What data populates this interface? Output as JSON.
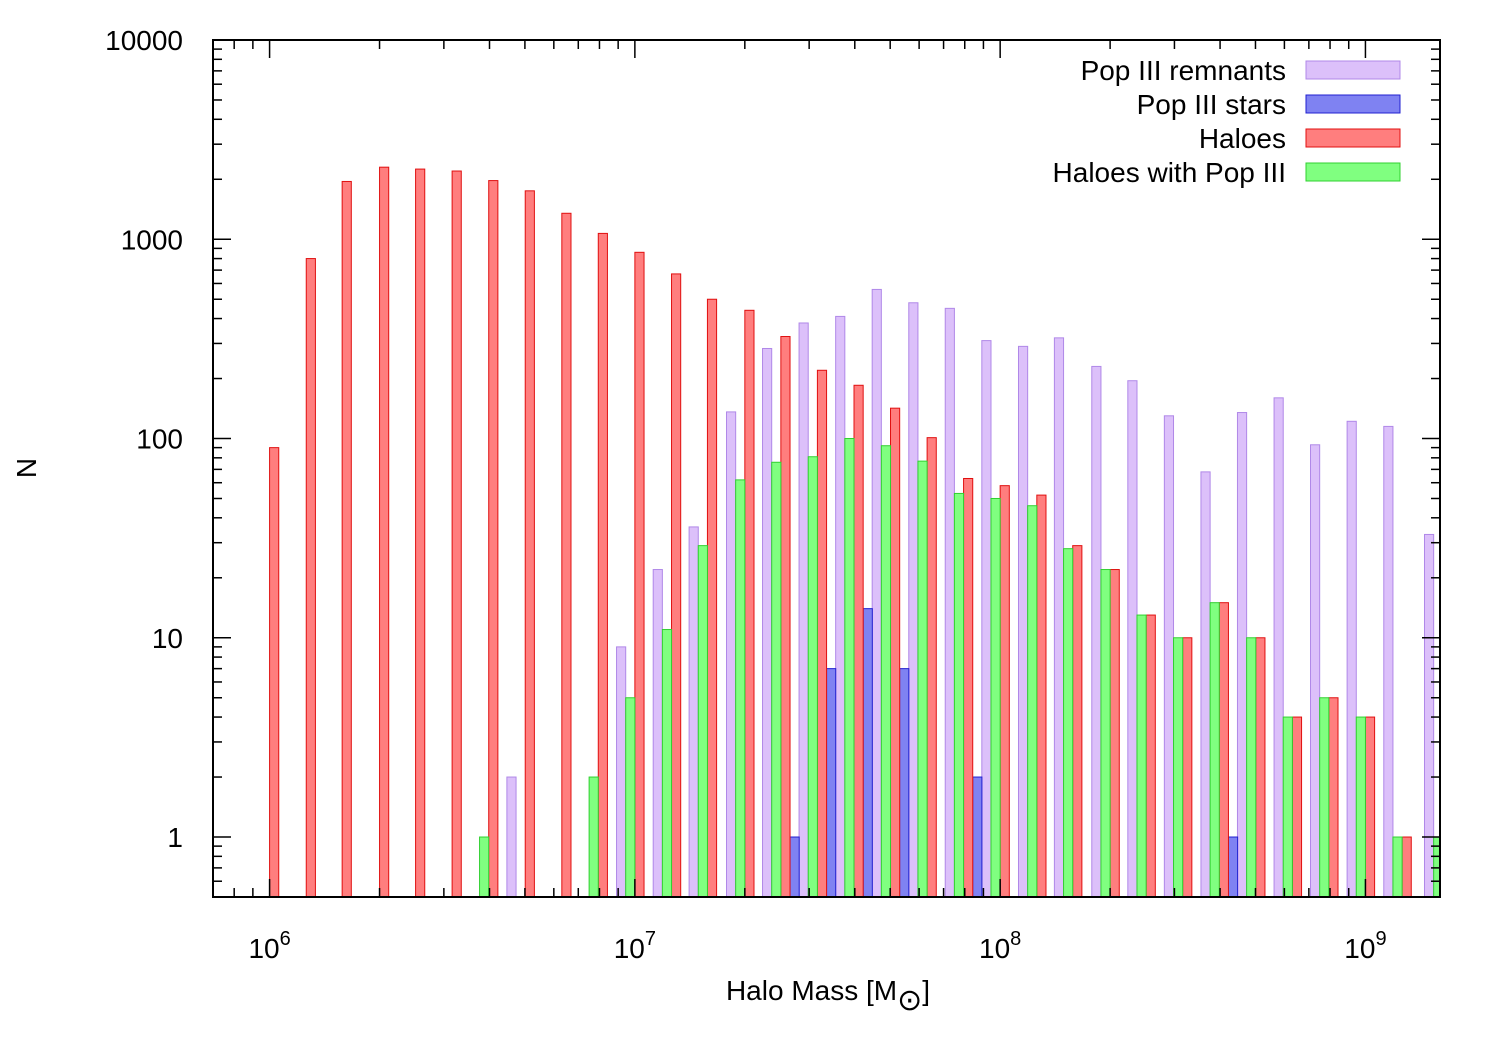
{
  "chart_data": {
    "type": "bar",
    "xlabel": "Halo Mass [M",
    "xlabel_sub": "⊙",
    "xlabel_end": "]",
    "ylabel": "N",
    "x_scale": "log",
    "y_scale": "log",
    "xlim": [
      700000,
      1600000000
    ],
    "ylim": [
      0.5,
      10000
    ],
    "x_ticks": [
      {
        "value": 1000000,
        "base": "10",
        "exp": "6"
      },
      {
        "value": 10000000,
        "base": "10",
        "exp": "7"
      },
      {
        "value": 100000000,
        "base": "10",
        "exp": "8"
      },
      {
        "value": 1000000000,
        "base": "10",
        "exp": "9"
      }
    ],
    "y_ticks": [
      {
        "value": 1,
        "label": "1"
      },
      {
        "value": 10,
        "label": "10"
      },
      {
        "value": 100,
        "label": "100"
      },
      {
        "value": 1000,
        "label": "1000"
      },
      {
        "value": 10000,
        "label": "10000"
      }
    ],
    "legend_position": "top-right",
    "grid": false,
    "bin_centers": [
      1000000,
      1260000,
      1580000,
      2000000,
      2510000,
      3160000,
      3980000,
      5010000,
      6310000,
      7940000,
      10000000,
      12600000,
      15800000,
      20000000,
      25100000,
      31600000,
      39800000,
      50100000,
      63100000,
      79400000,
      100000000,
      126000000,
      158000000,
      200000000,
      251000000,
      316000000,
      398000000,
      501000000,
      631000000,
      794000000,
      1000000000,
      1260000000
    ],
    "series": [
      {
        "name": "Pop III remnants",
        "fill": "#dcc0fa",
        "stroke": "#b088e8",
        "offset": -1.5,
        "values": [
          null,
          null,
          null,
          null,
          null,
          null,
          null,
          2,
          null,
          null,
          9,
          22,
          36,
          136,
          283,
          380,
          410,
          560,
          480,
          450,
          310,
          290,
          320,
          230,
          195,
          130,
          68,
          135,
          160,
          93,
          122,
          115,
          33
        ]
      },
      {
        "name": "Pop III stars",
        "fill": "#7f82f2",
        "stroke": "#2020d0",
        "offset": 1.5,
        "values": [
          null,
          null,
          null,
          null,
          null,
          null,
          null,
          null,
          null,
          null,
          null,
          null,
          null,
          null,
          1,
          7,
          14,
          7,
          null,
          2,
          null,
          null,
          null,
          null,
          null,
          null,
          1,
          null,
          null,
          null,
          null,
          null
        ]
      },
      {
        "name": "Haloes",
        "fill": "#ff7e7e",
        "stroke": "#e01010",
        "offset": 0.5,
        "values": [
          90,
          800,
          1950,
          2300,
          2250,
          2200,
          1970,
          1750,
          1350,
          1070,
          860,
          670,
          500,
          440,
          325,
          220,
          185,
          142,
          101,
          63,
          58,
          52,
          29,
          22,
          13,
          10,
          15,
          10,
          4,
          5,
          4,
          1
        ]
      },
      {
        "name": "Haloes with Pop III",
        "fill": "#80ff80",
        "stroke": "#30d030",
        "offset": -0.5,
        "values": [
          null,
          null,
          null,
          null,
          null,
          null,
          1,
          null,
          null,
          2,
          5,
          11,
          29,
          62,
          76,
          81,
          100,
          92,
          77,
          53,
          50,
          46,
          28,
          22,
          13,
          10,
          15,
          10,
          4,
          5,
          4,
          1
        ]
      }
    ],
    "extra_bars": [
      {
        "series": 0,
        "bin_index": 32,
        "value": 33
      },
      {
        "series": 3,
        "bin_index": 32,
        "value": 1
      }
    ]
  }
}
